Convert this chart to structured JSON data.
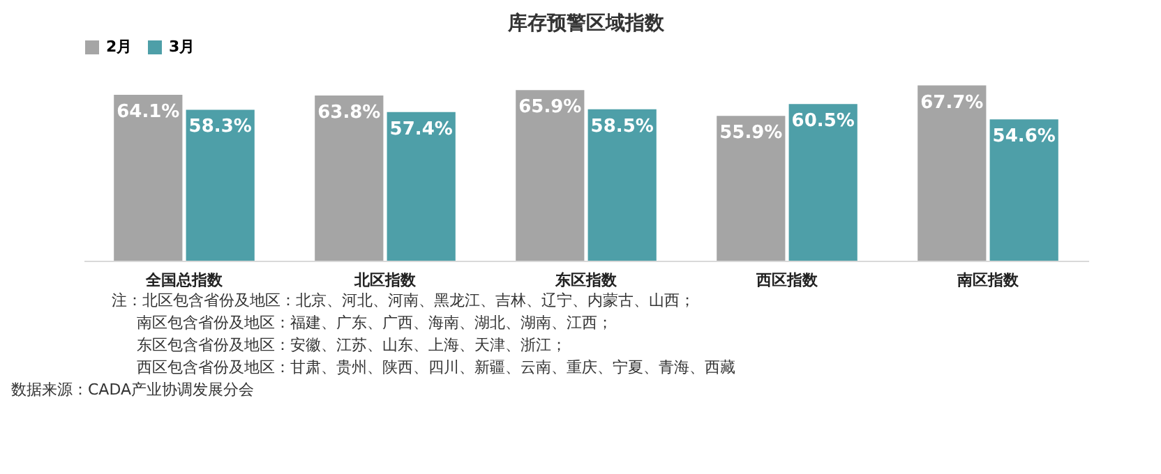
{
  "chart_data": {
    "type": "bar",
    "title": "库存预警区域指数",
    "categories": [
      "全国总指数",
      "北区指数",
      "东区指数",
      "西区指数",
      "南区指数"
    ],
    "series": [
      {
        "name": "2月",
        "color": "#a5a5a5",
        "values": [
          64.1,
          63.8,
          65.9,
          55.9,
          67.7
        ],
        "value_labels": [
          "64.1%",
          "63.8%",
          "65.9%",
          "55.9%",
          "67.7%"
        ]
      },
      {
        "name": "3月",
        "color": "#4e9fa8",
        "values": [
          58.3,
          57.4,
          58.5,
          60.5,
          54.6
        ],
        "value_labels": [
          "58.3%",
          "57.4%",
          "58.5%",
          "60.5%",
          "54.6%"
        ]
      }
    ],
    "legend": "top",
    "grid": false,
    "annotations": [
      "注：北区包含省份及地区：北京、河北、河南、黑龙江、吉林、辽宁、内蒙古、山西；",
      "南区包含省份及地区：福建、广东、广西、海南、湖北、湖南、江西；",
      "东区包含省份及地区：安徽、江苏、山东、上海、天津、浙江；",
      "西区包含省份及地区：甘肃、贵州、陕西、四川、新疆、云南、重庆、宁夏、青海、西藏",
      "数据来源：CADA产业协调发展分会"
    ]
  }
}
